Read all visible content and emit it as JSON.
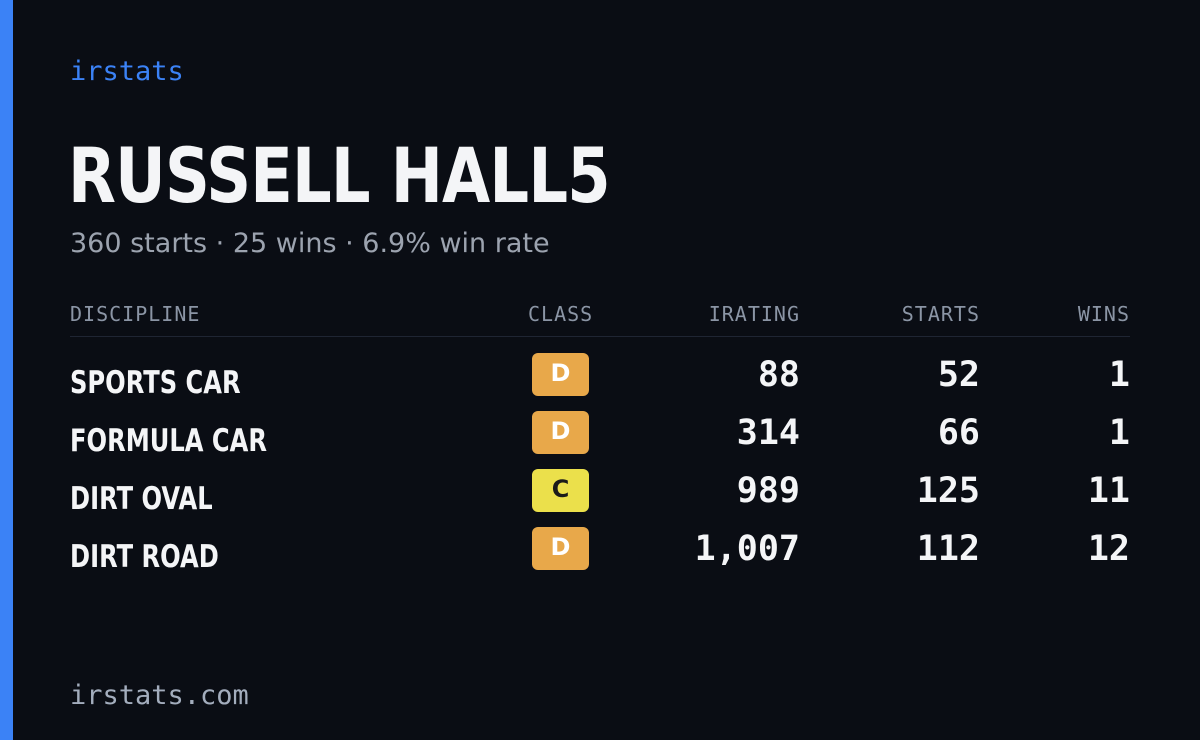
{
  "brand": "irstats",
  "driver": {
    "name": "RUSSELL HALL5",
    "summary": "360 starts · 25 wins · 6.9% win rate"
  },
  "colors": {
    "accent": "#3b82f6",
    "class_d": "#e8a84a",
    "class_c": "#ebe04b",
    "background": "#0a0d14"
  },
  "table": {
    "headers": {
      "discipline": "DISCIPLINE",
      "class": "CLASS",
      "irating": "IRATING",
      "starts": "STARTS",
      "wins": "WINS"
    },
    "rows": [
      {
        "discipline": "SPORTS CAR",
        "class": "D",
        "irating": "88",
        "starts": "52",
        "wins": "1"
      },
      {
        "discipline": "FORMULA CAR",
        "class": "D",
        "irating": "314",
        "starts": "66",
        "wins": "1"
      },
      {
        "discipline": "DIRT OVAL",
        "class": "C",
        "irating": "989",
        "starts": "125",
        "wins": "11"
      },
      {
        "discipline": "DIRT ROAD",
        "class": "D",
        "irating": "1,007",
        "starts": "112",
        "wins": "12"
      }
    ]
  },
  "footer": {
    "url": "irstats.com"
  }
}
